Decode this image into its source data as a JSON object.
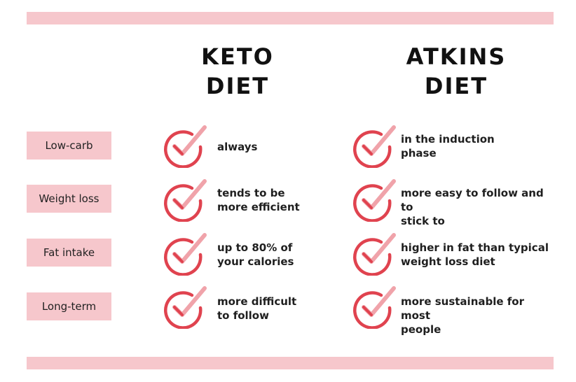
{
  "columns": {
    "keto": {
      "line1": "KETO",
      "line2": "DIET"
    },
    "atkins": {
      "line1": "ATKINS",
      "line2": "DIET"
    }
  },
  "colors": {
    "band": "#f6c7cc",
    "check_ring": "#e0434f",
    "check_mark": "#f0a3aa"
  },
  "icons": {
    "check": "checkmark-circle-icon"
  },
  "rows": [
    {
      "label": "Low-carb",
      "keto": "always",
      "atkins": "in the induction\nphase"
    },
    {
      "label": "Weight loss",
      "keto": "tends to be\nmore efficient",
      "atkins": "more easy to follow and to\nstick to"
    },
    {
      "label": "Fat intake",
      "keto": "up to 80% of\nyour calories",
      "atkins": "higher in fat than typical\nweight loss diet"
    },
    {
      "label": "Long-term",
      "keto": "more difficult\nto follow",
      "atkins": "more sustainable for most\npeople"
    }
  ]
}
